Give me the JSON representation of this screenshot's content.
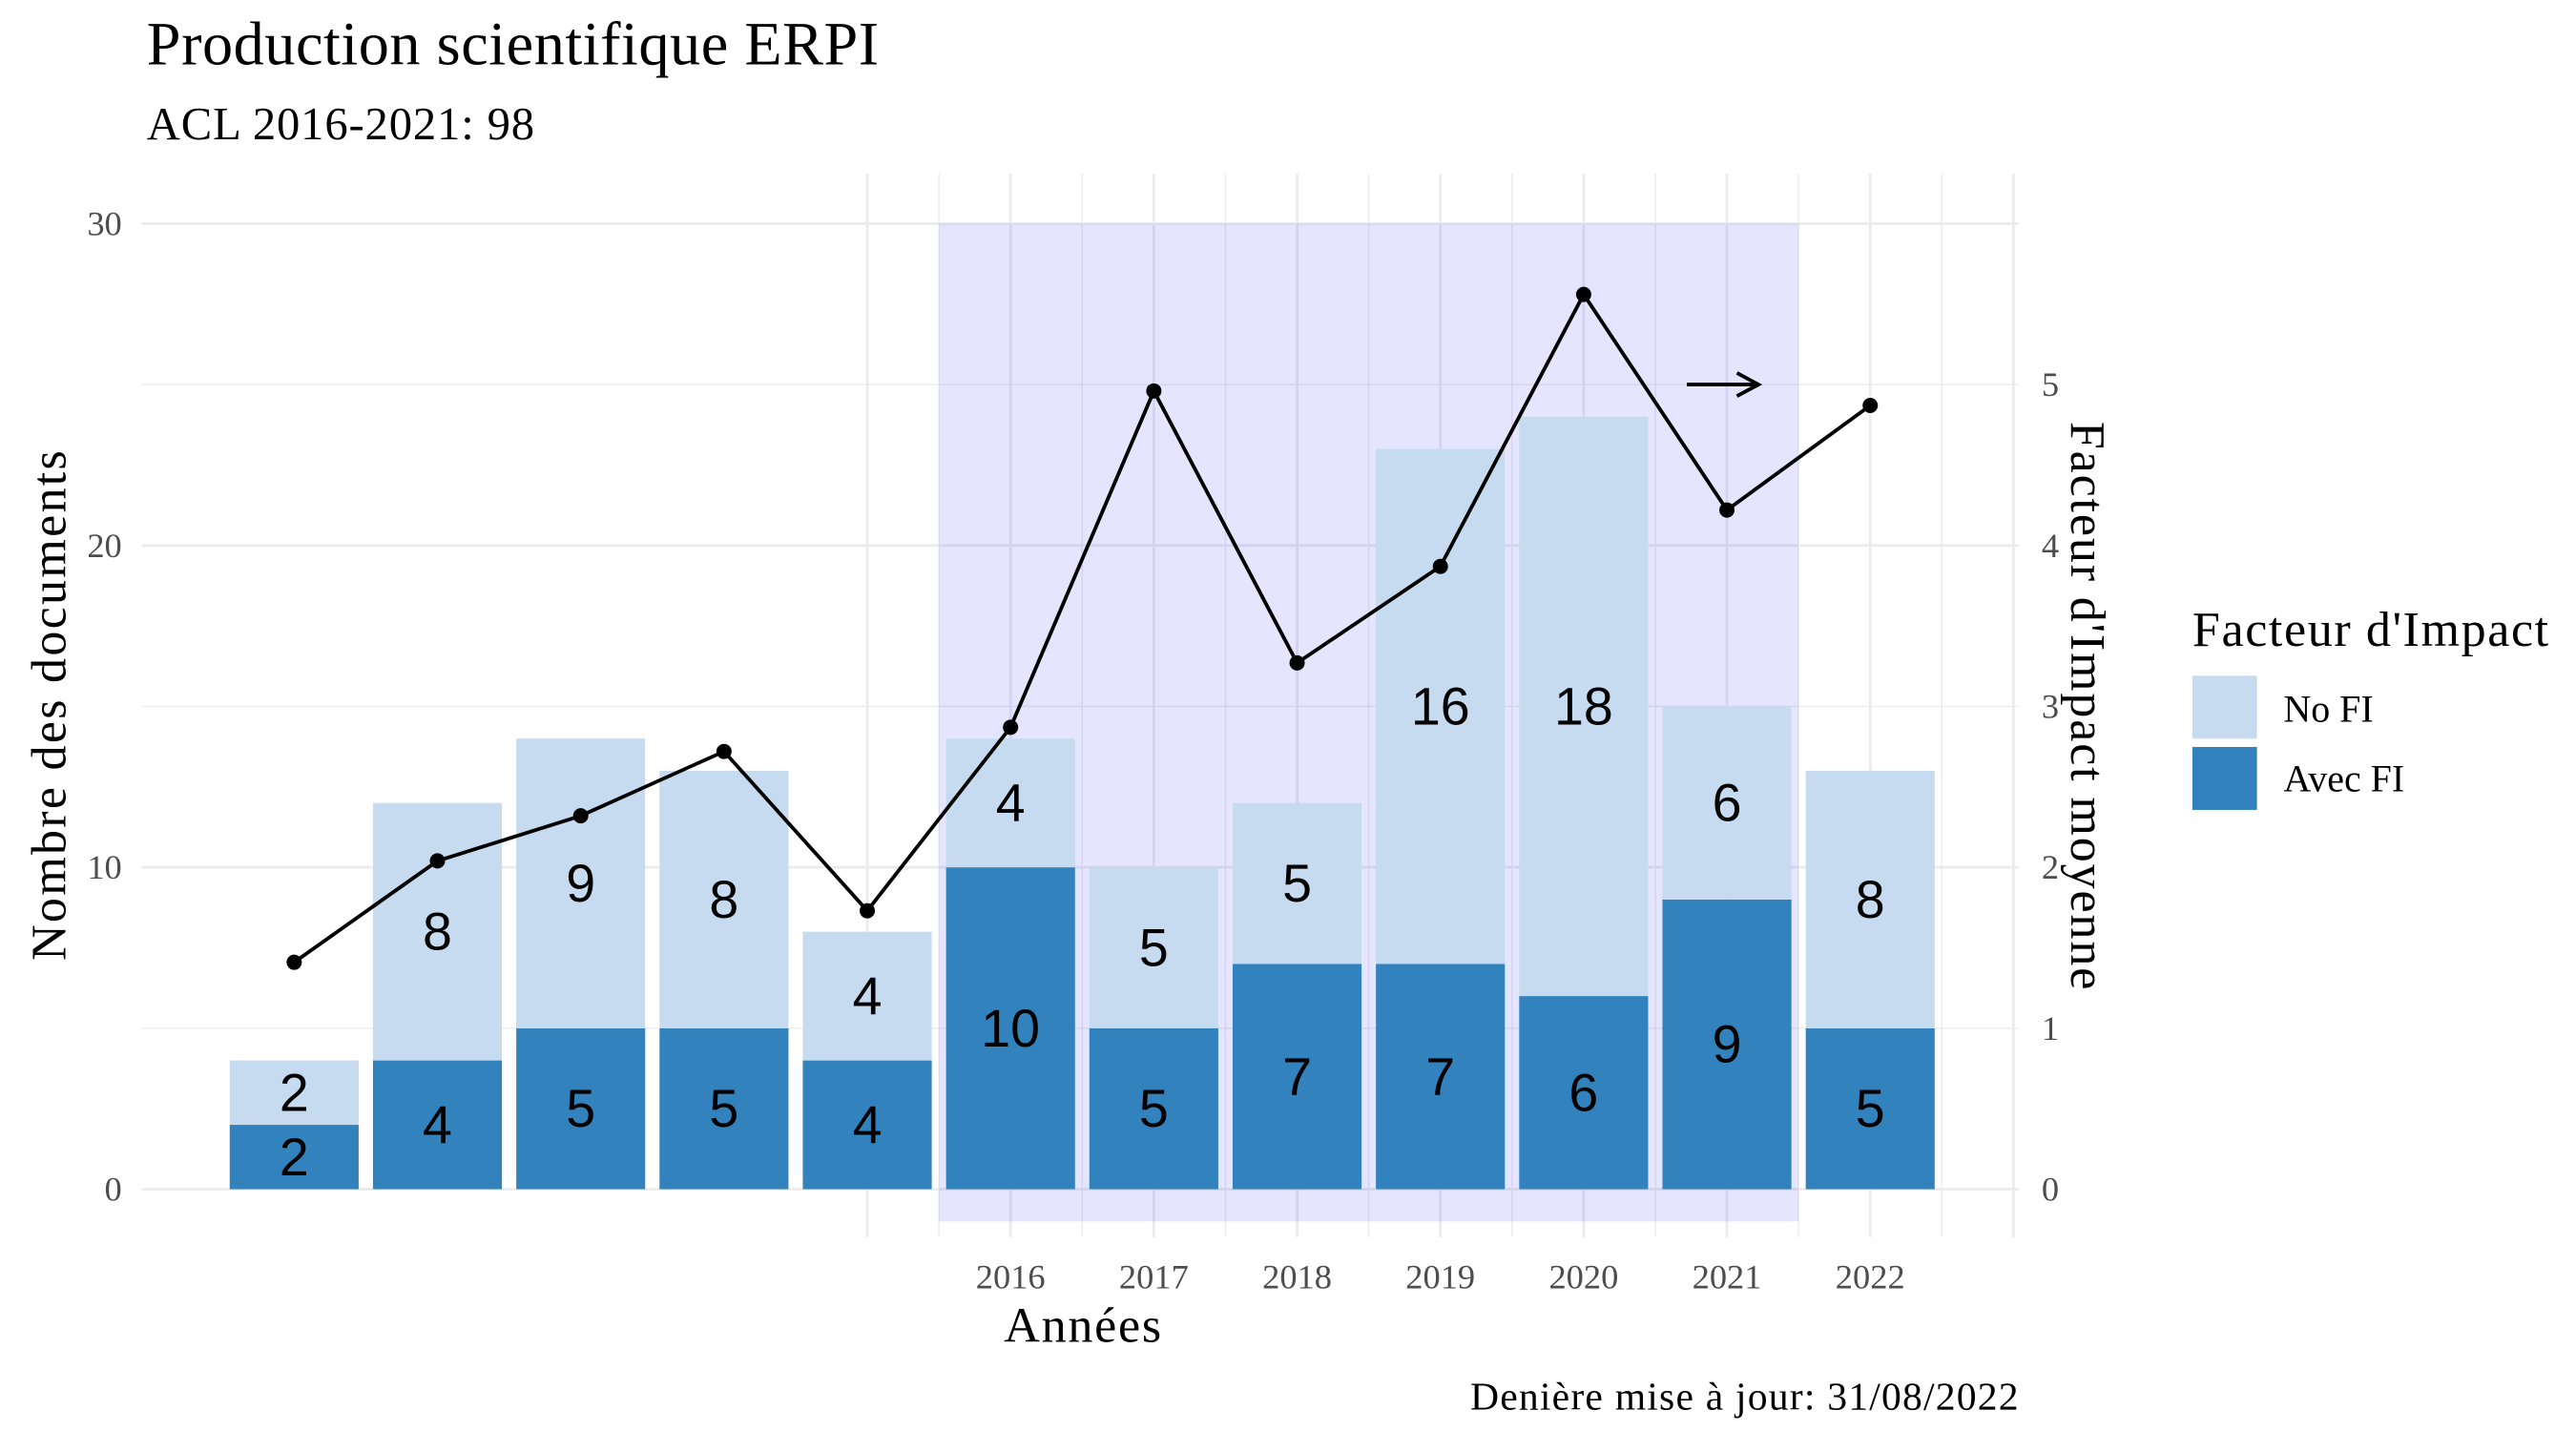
{
  "chart_data": {
    "type": "bar",
    "stacked": true,
    "title": "Production scientifique ERPI",
    "subtitle": "ACL 2016-2021: 98",
    "caption": "Denière mise à jour: 31/08/2022",
    "xlabel": "Années",
    "ylabel": "Nombre des documents",
    "y2label": "Facteur d'Impact moyenne",
    "categories": [
      "",
      "",
      "",
      "",
      "",
      "2016",
      "2017",
      "2018",
      "2019",
      "2020",
      "2021",
      "2022"
    ],
    "series": [
      {
        "name": "Avec FI",
        "color": "#3182bd",
        "values": [
          2,
          4,
          5,
          5,
          4,
          10,
          5,
          7,
          7,
          6,
          9,
          5
        ]
      },
      {
        "name": "No FI",
        "color": "#c6dbef",
        "values": [
          2,
          8,
          9,
          8,
          4,
          4,
          5,
          5,
          16,
          18,
          6,
          8
        ]
      }
    ],
    "line_values": [
      1.41,
      2.04,
      2.32,
      2.72,
      1.73,
      2.87,
      4.96,
      3.27,
      3.87,
      5.56,
      4.22,
      4.87
    ],
    "line_color": "#000000",
    "ylim": [
      0,
      30
    ],
    "yticks": [
      0,
      10,
      20,
      30
    ],
    "y2lim": [
      0,
      6
    ],
    "y2ticks": [
      0,
      1,
      2,
      3,
      4,
      5
    ],
    "highlight": {
      "from": "2016",
      "to": "2021",
      "ylim": [
        -1,
        30
      ],
      "color": "#0000ff",
      "opacity": 0.1
    },
    "legend": {
      "title": "Facteur d'Impact",
      "position": "right"
    },
    "grid": true
  }
}
